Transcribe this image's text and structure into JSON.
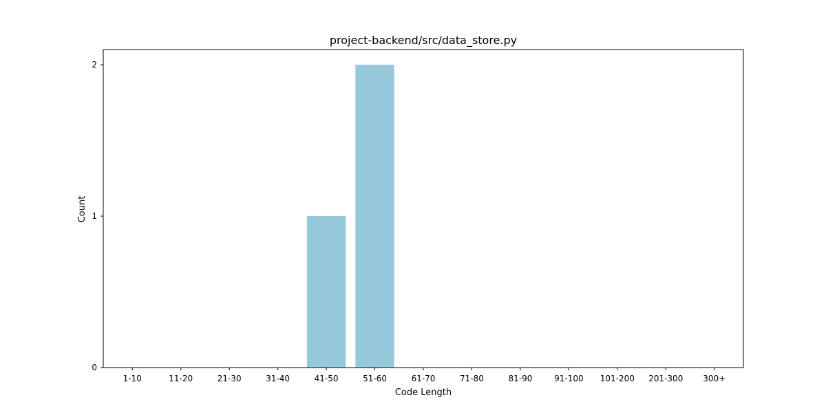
{
  "chart_data": {
    "type": "bar",
    "title": "project-backend/src/data_store.py",
    "xlabel": "Code Length",
    "ylabel": "Count",
    "categories": [
      "1-10",
      "11-20",
      "21-30",
      "31-40",
      "41-50",
      "51-60",
      "61-70",
      "71-80",
      "81-90",
      "91-100",
      "101-200",
      "201-300",
      "300+"
    ],
    "values": [
      0,
      0,
      0,
      0,
      1,
      2,
      0,
      0,
      0,
      0,
      0,
      0,
      0
    ],
    "ylim": [
      0,
      2.1
    ],
    "yticks": [
      0,
      1,
      2
    ],
    "bar_color": "#96c9dc",
    "grid": false,
    "legend": false
  }
}
